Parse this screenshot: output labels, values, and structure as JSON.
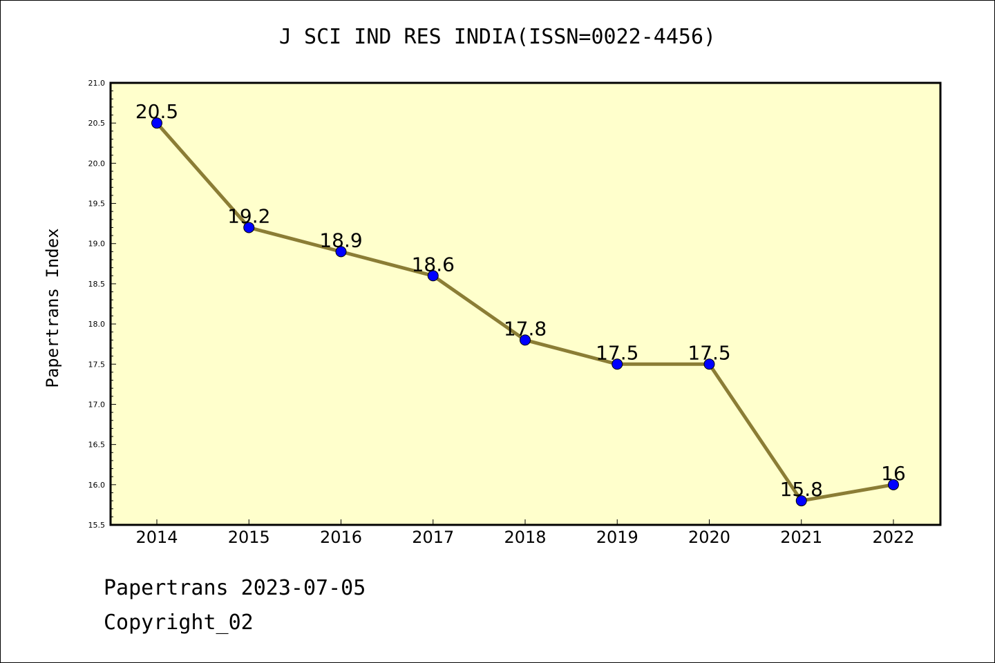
{
  "title": "J SCI IND RES INDIA(ISSN=0022-4456)",
  "footer": {
    "line1": "Papertrans 2023-07-05",
    "line2": "Copyright_02"
  },
  "colors": {
    "plot_background": "#ffffcc",
    "line": "#8b7d35",
    "marker": "#0000ff"
  },
  "chart_data": {
    "type": "line",
    "ylabel": "Papertrans Index",
    "categories": [
      "2014",
      "2015",
      "2016",
      "2017",
      "2018",
      "2019",
      "2020",
      "2021",
      "2022"
    ],
    "values": [
      20.5,
      19.2,
      18.9,
      18.6,
      17.8,
      17.5,
      17.5,
      15.8,
      16
    ],
    "data_labels": [
      "20.5",
      "19.2",
      "18.9",
      "18.6",
      "17.8",
      "17.5",
      "17.5",
      "15.8",
      "16"
    ],
    "ylim": [
      15.5,
      21.0
    ],
    "yticks": [
      "15.5",
      "16.0",
      "16.5",
      "17.0",
      "17.5",
      "18.0",
      "18.5",
      "19.0",
      "19.5",
      "20.0",
      "20.5",
      "21.0"
    ],
    "grid": false,
    "legend": "none"
  }
}
